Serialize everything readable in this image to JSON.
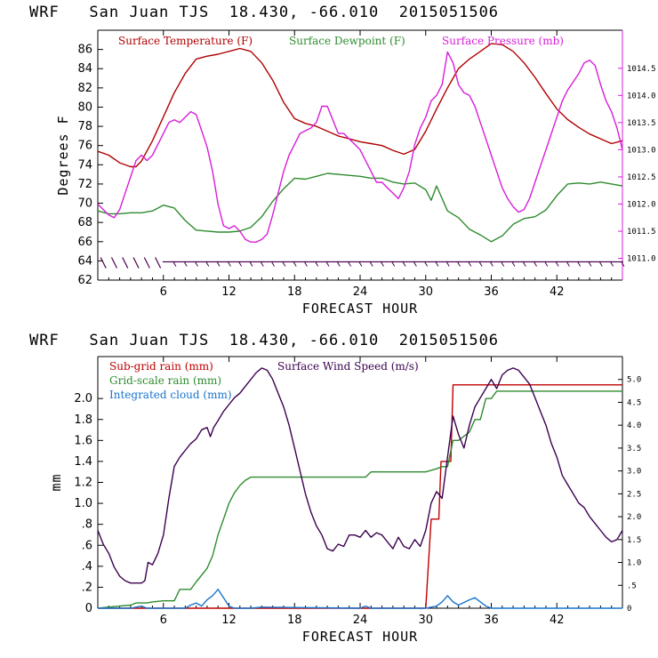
{
  "charts": [
    {
      "header": "WRF   San Juan TJS  18.430, -66.010  2015051506",
      "chart_data": {
        "type": "line",
        "xlabel": "FORECAST HOUR",
        "ylabel": "Degrees F",
        "xlim": [
          0,
          48
        ],
        "ylim": [
          62,
          88
        ],
        "xticks": [
          6,
          12,
          18,
          24,
          30,
          36,
          42
        ],
        "xtick_labels": [
          "6",
          "12",
          "18",
          "24",
          "30",
          "36",
          "42"
        ],
        "yticks": [
          62,
          64,
          66,
          68,
          70,
          72,
          74,
          76,
          78,
          80,
          82,
          84,
          86
        ],
        "ytick_labels": [
          "62",
          "64",
          "66",
          "68",
          "70",
          "72",
          "74",
          "76",
          "78",
          "80",
          "82",
          "84",
          "86"
        ],
        "y2lim": [
          1010.6,
          1015.2
        ],
        "y2ticks": [
          1011.0,
          1011.5,
          1012.0,
          1012.5,
          1013.0,
          1013.5,
          1014.0,
          1014.5
        ],
        "y2tick_labels": [
          "1011.0",
          "1011.5",
          "1012.0",
          "1012.5",
          "1013.0",
          "1013.5",
          "1014.0",
          "1014.5"
        ],
        "legend_position": "top",
        "series": [
          {
            "name": "Surface Temperature (F)",
            "color": "#b00000",
            "axis": "left",
            "x": [
              0,
              1,
              2,
              3,
              3.5,
              4,
              5,
              6,
              7,
              8,
              9,
              10,
              11,
              12,
              13,
              14,
              15,
              16,
              17,
              18,
              19,
              20,
              21,
              22,
              23,
              24,
              25,
              26,
              27,
              28,
              29,
              30,
              31,
              32,
              33,
              34,
              35,
              36,
              37,
              38,
              39,
              40,
              41,
              42,
              43,
              44,
              45,
              46,
              47,
              48
            ],
            "y": [
              75.4,
              75.0,
              74.2,
              73.8,
              73.8,
              74.4,
              76.5,
              79,
              81.5,
              83.5,
              85,
              85.3,
              85.5,
              85.8,
              86.1,
              85.8,
              84.6,
              82.8,
              80.5,
              78.8,
              78.3,
              78.0,
              77.5,
              77.0,
              76.7,
              76.4,
              76.2,
              76.0,
              75.5,
              75.1,
              75.6,
              77.5,
              79.8,
              82.0,
              84.0,
              85.0,
              85.8,
              86.6,
              86.5,
              85.8,
              84.6,
              83.1,
              81.4,
              79.8,
              78.7,
              77.9,
              77.2,
              76.7,
              76.2,
              76.5
            ]
          },
          {
            "name": "Surface Dewpoint (F)",
            "color": "#2e8b2e",
            "axis": "left",
            "x": [
              0,
              1,
              2,
              3,
              4,
              5,
              6,
              7,
              8,
              9,
              10,
              11,
              12,
              13,
              14,
              15,
              16,
              17,
              18,
              19,
              20,
              21,
              22,
              23,
              24,
              25,
              26,
              27,
              28,
              29,
              30,
              30.5,
              31,
              32,
              33,
              34,
              35,
              36,
              37,
              38,
              39,
              40,
              41,
              42,
              43,
              44,
              45,
              46,
              47,
              48
            ],
            "y": [
              69.2,
              68.9,
              68.9,
              69.0,
              69.0,
              69.2,
              69.8,
              69.5,
              68.2,
              67.2,
              67.1,
              67.0,
              67.0,
              67.1,
              67.5,
              68.6,
              70.2,
              71.5,
              72.6,
              72.5,
              72.8,
              73.1,
              73.0,
              72.9,
              72.8,
              72.6,
              72.6,
              72.2,
              72.0,
              72.1,
              71.4,
              70.3,
              71.8,
              69.2,
              68.5,
              67.3,
              66.7,
              66.0,
              66.6,
              67.8,
              68.4,
              68.6,
              69.3,
              70.8,
              72.0,
              72.1,
              72.0,
              72.2,
              72.0,
              71.8
            ]
          },
          {
            "name": "Surface Pressure (mb)",
            "color": "#d81ed8",
            "axis": "right",
            "x": [
              0,
              0.5,
              1,
              1.5,
              2,
              2.5,
              3,
              3.5,
              4,
              4.5,
              5,
              5.5,
              6,
              6.5,
              7,
              7.5,
              8,
              8.5,
              9,
              9.5,
              10,
              10.5,
              11,
              11.5,
              12,
              12.5,
              13,
              13.5,
              14,
              14.5,
              15,
              15.5,
              16,
              16.5,
              17,
              17.5,
              18,
              18.5,
              19,
              19.5,
              20,
              20.5,
              21,
              21.5,
              22,
              22.5,
              23,
              23.5,
              24,
              24.5,
              25,
              25.5,
              26,
              26.5,
              27,
              27.5,
              28,
              28.5,
              29,
              29.5,
              30,
              30.5,
              31,
              31.5,
              32,
              32.5,
              33,
              33.5,
              34,
              34.5,
              35,
              35.5,
              36,
              36.5,
              37,
              37.5,
              38,
              38.5,
              39,
              39.5,
              40,
              40.5,
              41,
              41.5,
              42,
              42.5,
              43,
              43.5,
              44,
              44.5,
              45,
              45.5,
              46,
              46.5,
              47,
              47.5,
              48
            ],
            "y": [
              1012.0,
              1011.9,
              1011.8,
              1011.75,
              1011.9,
              1012.2,
              1012.5,
              1012.8,
              1012.9,
              1012.8,
              1012.9,
              1013.1,
              1013.3,
              1013.5,
              1013.55,
              1013.5,
              1013.6,
              1013.7,
              1013.65,
              1013.35,
              1013.05,
              1012.6,
              1012.0,
              1011.6,
              1011.55,
              1011.6,
              1011.5,
              1011.35,
              1011.3,
              1011.3,
              1011.35,
              1011.45,
              1011.8,
              1012.2,
              1012.6,
              1012.9,
              1013.1,
              1013.3,
              1013.35,
              1013.4,
              1013.5,
              1013.8,
              1013.8,
              1013.55,
              1013.3,
              1013.3,
              1013.2,
              1013.1,
              1013.0,
              1012.8,
              1012.6,
              1012.4,
              1012.4,
              1012.3,
              1012.2,
              1012.1,
              1012.3,
              1012.6,
              1013.1,
              1013.4,
              1013.6,
              1013.9,
              1014.0,
              1014.2,
              1014.8,
              1014.6,
              1014.2,
              1014.05,
              1014.0,
              1013.8,
              1013.5,
              1013.2,
              1012.9,
              1012.6,
              1012.3,
              1012.1,
              1011.95,
              1011.85,
              1011.9,
              1012.1,
              1012.4,
              1012.7,
              1013.0,
              1013.3,
              1013.6,
              1013.9,
              1014.1,
              1014.25,
              1014.4,
              1014.6,
              1014.65,
              1014.55,
              1014.2,
              1013.9,
              1013.7,
              1013.4,
              1013.0
            ]
          }
        ],
        "wind_barbs": {
          "color": "#4a0050",
          "x": [
            0,
            1,
            2,
            3,
            4,
            5,
            6,
            7,
            8,
            9,
            10,
            11,
            12,
            13,
            14,
            15,
            16,
            17,
            18,
            19,
            20,
            21,
            22,
            23,
            24,
            25,
            26,
            27,
            28,
            29,
            30,
            31,
            32,
            33,
            34,
            35,
            36,
            37,
            38,
            39,
            40,
            41,
            42,
            43,
            44,
            45,
            46,
            47
          ]
        }
      }
    },
    {
      "header": "WRF   San Juan TJS  18.430, -66.010  2015051506",
      "chart_data": {
        "type": "line",
        "xlabel": "FORECAST HOUR",
        "ylabel": "mm",
        "xlim": [
          0,
          48
        ],
        "ylim": [
          0,
          2.4
        ],
        "xticks": [
          6,
          12,
          18,
          24,
          30,
          36,
          42
        ],
        "xtick_labels": [
          "6",
          "12",
          "18",
          "24",
          "30",
          "36",
          "42"
        ],
        "yticks": [
          0,
          0.2,
          0.4,
          0.6,
          0.8,
          1.0,
          1.2,
          1.4,
          1.6,
          1.8,
          2.0
        ],
        "ytick_labels": [
          "0",
          ".2",
          ".4",
          ".6",
          ".8",
          "1.0",
          "1.2",
          "1.4",
          "1.6",
          "1.8",
          "2.0"
        ],
        "y2lim": [
          0,
          5.5
        ],
        "y2ticks": [
          0,
          0.5,
          1.0,
          1.5,
          2.0,
          2.5,
          3.0,
          3.5,
          4.0,
          4.5,
          5.0
        ],
        "y2tick_labels": [
          "0",
          ".5",
          "1.0",
          "1.5",
          "2.0",
          "2.5",
          "3.0",
          "3.5",
          "4.0",
          "4.5",
          "5.0"
        ],
        "legend_position": "top-left",
        "series": [
          {
            "name": "Sub-grid rain (mm)",
            "color": "#c00000",
            "axis": "left",
            "x": [
              0,
              30,
              30.5,
              31.2,
              31.4,
              32.3,
              32.5,
              48
            ],
            "y": [
              0,
              0,
              0.85,
              0.85,
              1.4,
              1.4,
              2.13,
              2.13
            ]
          },
          {
            "name": "Grid-scale rain (mm)",
            "color": "#2e8b2e",
            "axis": "left",
            "x": [
              0,
              2,
              3,
              3.5,
              4.5,
              5,
              6,
              7,
              7.5,
              8.5,
              9,
              10,
              10.5,
              11,
              11.5,
              12,
              12.5,
              13,
              13.5,
              14,
              24.5,
              25,
              30,
              31,
              31.5,
              32,
              32.5,
              33,
              34,
              34.5,
              35,
              35.5,
              36,
              36.5,
              48
            ],
            "y": [
              0,
              0.02,
              0.03,
              0.05,
              0.05,
              0.06,
              0.07,
              0.07,
              0.18,
              0.18,
              0.25,
              0.38,
              0.5,
              0.7,
              0.85,
              1.0,
              1.1,
              1.17,
              1.22,
              1.25,
              1.25,
              1.3,
              1.3,
              1.33,
              1.35,
              1.35,
              1.6,
              1.6,
              1.68,
              1.8,
              1.8,
              2.0,
              2.0,
              2.07,
              2.07
            ]
          },
          {
            "name": "Integrated cloud (mm)",
            "color": "#1874cd",
            "axis": "left",
            "x": [
              0,
              3,
              3.5,
              4,
              4.5,
              8,
              8.5,
              9,
              9.5,
              10,
              10.5,
              11,
              11.5,
              12,
              12.5,
              14,
              15,
              24,
              24.5,
              25,
              30,
              31,
              31.5,
              32,
              32.5,
              33,
              34,
              34.5,
              35,
              35.5,
              36,
              48
            ],
            "y": [
              0,
              0,
              0.01,
              0.02,
              0,
              0,
              0.03,
              0.05,
              0.02,
              0.08,
              0.12,
              0.18,
              0.1,
              0.02,
              0,
              0,
              0.01,
              0,
              0.02,
              0,
              0,
              0.02,
              0.06,
              0.12,
              0.06,
              0.03,
              0.08,
              0.1,
              0.06,
              0.02,
              0,
              0
            ]
          },
          {
            "name": "Surface Wind Speed (m/s)",
            "color": "#3a0050",
            "axis": "right",
            "x": [
              0,
              0.5,
              1,
              1.5,
              2,
              2.5,
              3,
              3.5,
              4,
              4.3,
              4.6,
              5,
              5.5,
              6,
              6.5,
              7,
              7.5,
              8,
              8.5,
              9,
              9.5,
              10,
              10.3,
              10.6,
              11,
              11.5,
              12,
              12.5,
              13,
              13.5,
              14,
              14.5,
              15,
              15.5,
              16,
              16.5,
              17,
              17.5,
              18,
              18.5,
              19,
              19.5,
              20,
              20.5,
              21,
              21.5,
              22,
              22.5,
              23,
              23.5,
              24,
              24.5,
              25,
              25.5,
              26,
              26.5,
              27,
              27.5,
              28,
              28.5,
              29,
              29.5,
              30,
              30.5,
              31,
              31.5,
              32,
              32.5,
              33,
              33.5,
              34,
              34.5,
              35,
              35.5,
              36,
              36.5,
              37,
              37.5,
              38,
              38.5,
              39,
              39.5,
              40,
              40.5,
              41,
              41.5,
              42,
              42.5,
              43,
              43.5,
              44,
              44.5,
              45,
              45.5,
              46,
              46.5,
              47,
              47.5,
              48
            ],
            "y": [
              1.7,
              1.4,
              1.2,
              0.9,
              0.7,
              0.6,
              0.55,
              0.55,
              0.55,
              0.6,
              1.0,
              0.95,
              1.2,
              1.6,
              2.4,
              3.1,
              3.3,
              3.45,
              3.6,
              3.7,
              3.9,
              3.95,
              3.75,
              3.95,
              4.1,
              4.3,
              4.45,
              4.6,
              4.7,
              4.85,
              5.0,
              5.15,
              5.25,
              5.2,
              5.0,
              4.7,
              4.4,
              4.0,
              3.5,
              3.0,
              2.5,
              2.1,
              1.8,
              1.6,
              1.3,
              1.25,
              1.4,
              1.35,
              1.6,
              1.6,
              1.55,
              1.7,
              1.55,
              1.65,
              1.6,
              1.45,
              1.3,
              1.55,
              1.35,
              1.3,
              1.5,
              1.35,
              1.7,
              2.3,
              2.55,
              2.4,
              3.3,
              4.2,
              3.8,
              3.5,
              4.0,
              4.4,
              4.6,
              4.8,
              5.0,
              4.8,
              5.1,
              5.2,
              5.25,
              5.2,
              5.05,
              4.9,
              4.6,
              4.3,
              4.0,
              3.6,
              3.3,
              2.9,
              2.7,
              2.5,
              2.3,
              2.2,
              2.0,
              1.85,
              1.7,
              1.55,
              1.45,
              1.5,
              1.7
            ]
          }
        ]
      }
    }
  ]
}
